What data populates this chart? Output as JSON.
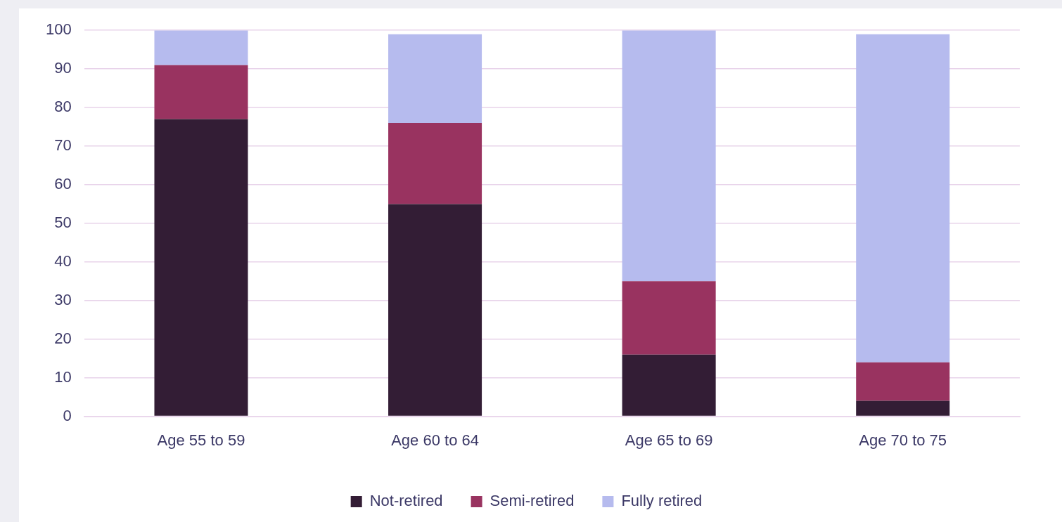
{
  "chart_data": {
    "type": "bar",
    "stacked": true,
    "categories": [
      "Age 55 to 59",
      "Age 60 to 64",
      "Age 65 to 69",
      "Age 70 to 75"
    ],
    "series": [
      {
        "name": "Not-retired",
        "color": "#331d35",
        "values": [
          77,
          55,
          16,
          4
        ]
      },
      {
        "name": "Semi-retired",
        "color": "#993360",
        "values": [
          14,
          21,
          19,
          10
        ]
      },
      {
        "name": "Fully retired",
        "color": "#b6bbee",
        "values": [
          9,
          23,
          65,
          85
        ]
      }
    ],
    "ylim": [
      0,
      100
    ],
    "yticks": [
      0,
      10,
      20,
      30,
      40,
      50,
      60,
      70,
      80,
      90,
      100
    ],
    "grid": "y",
    "legend": "bottom"
  }
}
